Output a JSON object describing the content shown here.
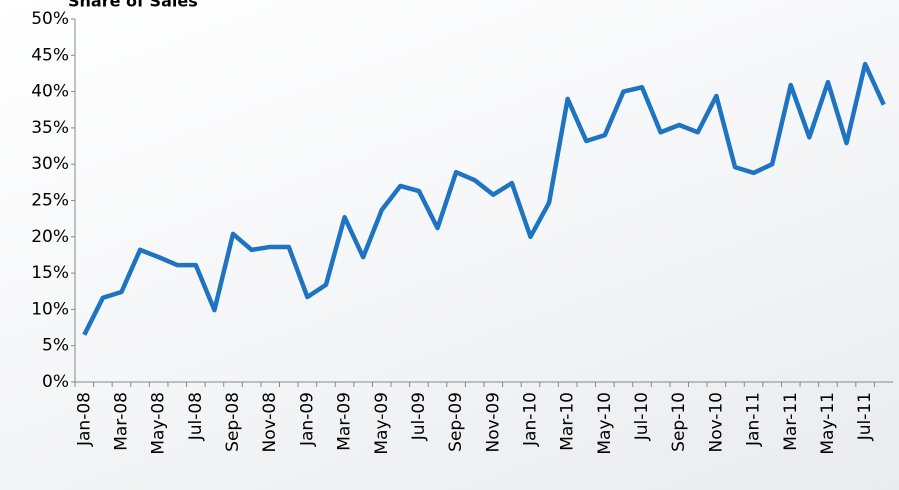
{
  "chart_data": {
    "type": "line",
    "title": "Share of Sales",
    "categories": [
      "Jan-08",
      null,
      "Mar-08",
      null,
      "May-08",
      null,
      "Jul-08",
      null,
      "Sep-08",
      null,
      "Nov-08",
      null,
      "Jan-09",
      null,
      "Mar-09",
      null,
      "May-09",
      null,
      "Jul-09",
      null,
      "Sep-09",
      null,
      "Nov-09",
      null,
      "Jan-10",
      null,
      "Mar-10",
      null,
      "May-10",
      null,
      "Jul-10",
      null,
      "Sep-10",
      null,
      "Nov-10",
      null,
      "Jan-11",
      null,
      "Mar-11",
      null,
      "May-11",
      null,
      "Jul-11",
      null
    ],
    "series": [
      {
        "name": "Share of Sales",
        "color": "#1f74c2",
        "values": [
          6.5,
          11.6,
          12.4,
          18.2,
          17.2,
          16.1,
          16.1,
          9.9,
          20.4,
          18.2,
          18.6,
          18.6,
          11.7,
          13.4,
          22.7,
          17.2,
          23.7,
          27.0,
          26.3,
          21.2,
          28.9,
          27.8,
          25.8,
          27.4,
          20.0,
          24.7,
          39.0,
          33.2,
          34.0,
          40.0,
          40.6,
          34.4,
          35.4,
          34.4,
          39.4,
          29.6,
          28.8,
          30.0,
          40.9,
          33.7,
          41.3,
          32.9,
          43.8,
          38.2
        ]
      }
    ],
    "ylim": [
      0,
      50
    ],
    "yticks": [
      {
        "value": 0,
        "label": "0%"
      },
      {
        "value": 5,
        "label": "5%"
      },
      {
        "value": 10,
        "label": "10%"
      },
      {
        "value": 15,
        "label": "15%"
      },
      {
        "value": 20,
        "label": "20%"
      },
      {
        "value": 25,
        "label": "25%"
      },
      {
        "value": 30,
        "label": "30%"
      },
      {
        "value": 35,
        "label": "35%"
      },
      {
        "value": 40,
        "label": "40%"
      },
      {
        "value": 45,
        "label": "45%"
      },
      {
        "value": 50,
        "label": "50%"
      }
    ],
    "grid": false
  }
}
